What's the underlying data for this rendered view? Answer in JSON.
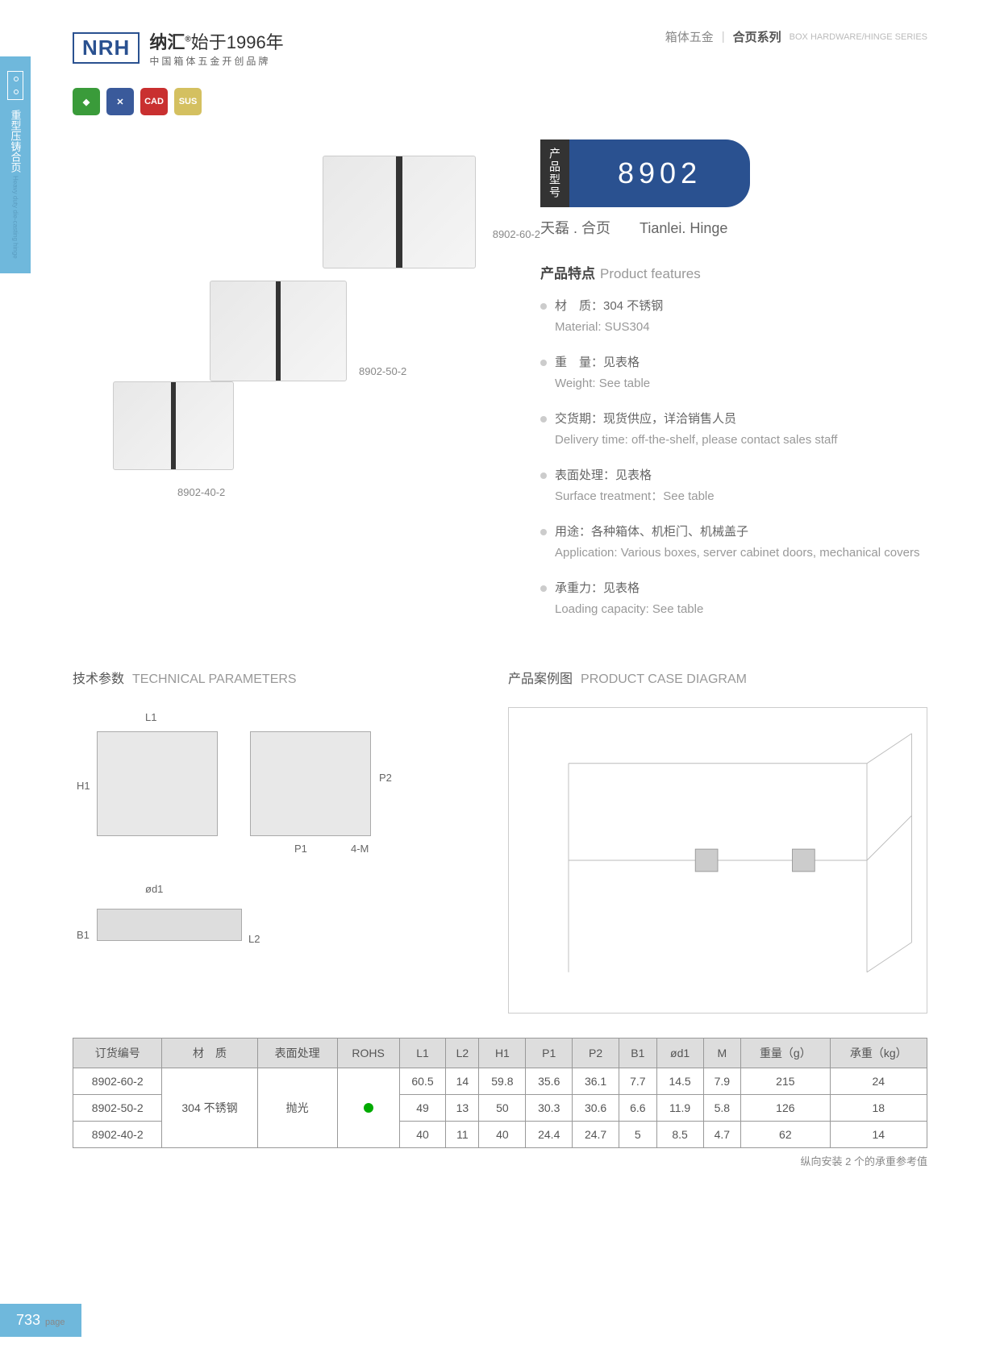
{
  "header": {
    "logo": "NRH",
    "cn": "纳汇",
    "reg": "®",
    "since": "始于1996年",
    "sub": "中国箱体五金开创品牌",
    "r1": "箱体五金",
    "r2": "合页系列",
    "r3": "BOX HARDWARE/HINGE SERIES"
  },
  "side": {
    "cn": "重型压铸合页",
    "en": "Heavy duty die-casting hinge"
  },
  "badges": [
    {
      "bg": "#3a9b3a",
      "t": "◆"
    },
    {
      "bg": "#3a5a9b",
      "t": "✕"
    },
    {
      "bg": "#c93030",
      "t": "CAD"
    },
    {
      "bg": "#d4c060",
      "t": "SUS"
    }
  ],
  "product": {
    "labels": [
      "8902-60-2",
      "8902-50-2",
      "8902-40-2"
    ]
  },
  "model": {
    "lbl": "产品型号",
    "num": "8902",
    "name_cn": "天磊 . 合页",
    "name_en": "Tianlei. Hinge"
  },
  "features": {
    "title_cn": "产品特点",
    "title_en": "Product features",
    "items": [
      {
        "cn": "材　质：304 不锈钢",
        "en": "Material: SUS304"
      },
      {
        "cn": "重　量：见表格",
        "en": "Weight: See table"
      },
      {
        "cn": "交货期：现货供应，详洽销售人员",
        "en": "Delivery time: off-the-shelf, please contact sales staff"
      },
      {
        "cn": "表面处理：见表格",
        "en": "Surface treatment：See table"
      },
      {
        "cn": "用途：各种箱体、机柜门、机械盖子",
        "en": "Application: Various boxes, server cabinet doors, mechanical covers"
      },
      {
        "cn": "承重力：见表格",
        "en": "Loading capacity: See table"
      }
    ]
  },
  "tech": {
    "title_cn": "技术参数",
    "title_en": "TECHNICAL PARAMETERS",
    "dims": [
      "L1",
      "H1",
      "P2",
      "P1",
      "4-M",
      "ød1",
      "B1",
      "L2"
    ]
  },
  "case": {
    "title_cn": "产品案例图",
    "title_en": "PRODUCT CASE DIAGRAM"
  },
  "table": {
    "headers": [
      "订货编号",
      "材　质",
      "表面处理",
      "ROHS",
      "L1",
      "L2",
      "H1",
      "P1",
      "P2",
      "B1",
      "ød1",
      "M",
      "重量（g）",
      "承重（kg）"
    ],
    "mat": "304 不锈钢",
    "surf": "抛光",
    "rows": [
      [
        "8902-60-2",
        "60.5",
        "14",
        "59.8",
        "35.6",
        "36.1",
        "7.7",
        "14.5",
        "7.9",
        "215",
        "24"
      ],
      [
        "8902-50-2",
        "49",
        "13",
        "50",
        "30.3",
        "30.6",
        "6.6",
        "11.9",
        "5.8",
        "126",
        "18"
      ],
      [
        "8902-40-2",
        "40",
        "11",
        "40",
        "24.4",
        "24.7",
        "5",
        "8.5",
        "4.7",
        "62",
        "14"
      ]
    ],
    "note": "纵向安装 2 个的承重参考值"
  },
  "page": "733",
  "pagelbl": "page"
}
